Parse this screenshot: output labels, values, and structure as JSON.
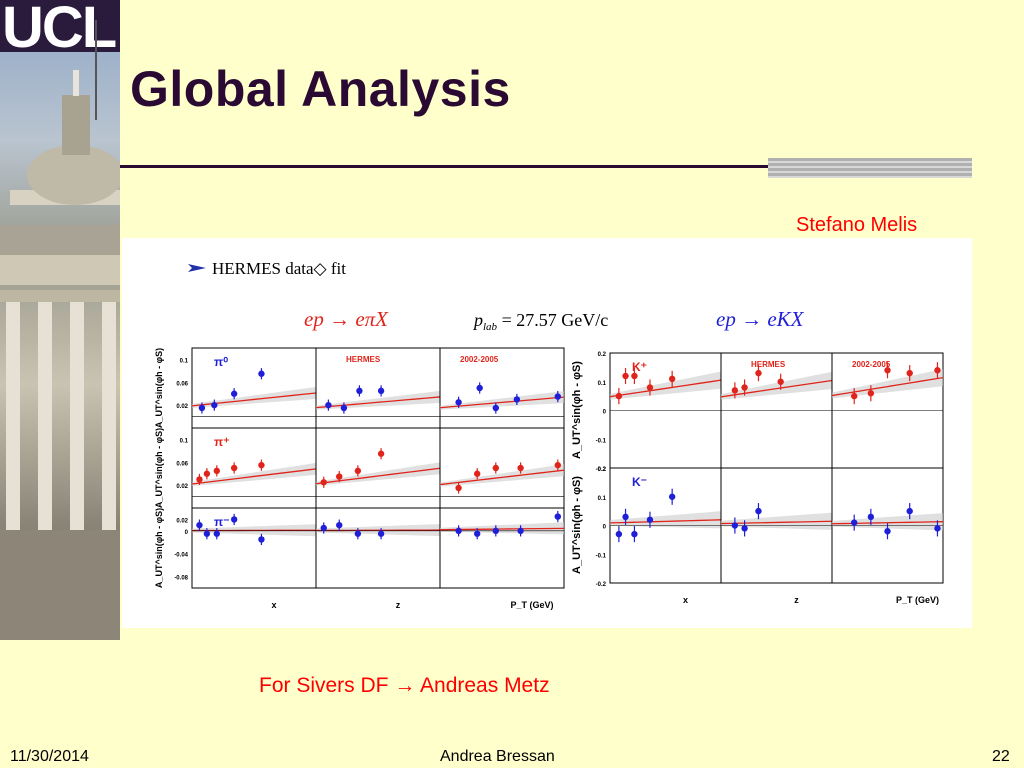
{
  "slide": {
    "title": "Global Analysis",
    "author": "Stefano Melis",
    "credit": "For Sivers DF → Andreas Metz",
    "footer": {
      "date": "11/30/2014",
      "presenter": "Andrea Bressan",
      "page": "22"
    }
  },
  "logo": {
    "text": "UCL"
  },
  "figure": {
    "heading": "HERMES data◇ fit",
    "pion_process": "ep → eπX",
    "plab": "p",
    "plab_sub": "lab",
    "plab_value": " = 27.57 GeV/c",
    "kaon_process": "ep → eKX",
    "hermes_label": "HERMES",
    "years_label": "2002-2005",
    "ylabel_pion": "A_UT^sin(φh - φS)",
    "ylabel_kaon": "A_UT^sin(φh - φS)"
  },
  "colors": {
    "title": "#2a0a33",
    "accent": "#ff0000",
    "data_red": "#e0241b",
    "data_blue": "#1f1fd8",
    "fit": "#e0241b",
    "band": "#cccccc"
  },
  "chart_data": [
    {
      "type": "scatter",
      "title": "π⁰",
      "xlabels": [
        "x",
        "z",
        "P_T (GeV)"
      ],
      "ylabel": "A_UT sin(φh - φS)",
      "ylim": [
        -0.02,
        0.12
      ],
      "series": [
        {
          "name": "π⁰",
          "color": "blue",
          "panels": [
            {
              "x": [
                0.04,
                0.09,
                0.17,
                0.28
              ],
              "y": [
                0.015,
                0.02,
                0.04,
                0.075
              ]
            },
            {
              "x": [
                0.28,
                0.38,
                0.48,
                0.62
              ],
              "y": [
                0.02,
                0.015,
                0.045,
                0.045
              ]
            },
            {
              "x": [
                0.15,
                0.32,
                0.45,
                0.62,
                0.95
              ],
              "y": [
                0.025,
                0.05,
                0.015,
                0.03,
                0.035
              ]
            }
          ]
        }
      ]
    },
    {
      "type": "scatter",
      "title": "π⁺",
      "xlabels": [
        "x",
        "z",
        "P_T (GeV)"
      ],
      "ylim": [
        -0.02,
        0.12
      ],
      "series": [
        {
          "name": "π⁺",
          "color": "red",
          "panels": [
            {
              "x": [
                0.03,
                0.06,
                0.1,
                0.17,
                0.28
              ],
              "y": [
                0.03,
                0.04,
                0.045,
                0.05,
                0.055
              ]
            },
            {
              "x": [
                0.25,
                0.35,
                0.47,
                0.62
              ],
              "y": [
                0.025,
                0.035,
                0.045,
                0.075
              ]
            },
            {
              "x": [
                0.15,
                0.3,
                0.45,
                0.65,
                0.95
              ],
              "y": [
                0.015,
                0.04,
                0.05,
                0.05,
                0.055
              ]
            }
          ]
        }
      ]
    },
    {
      "type": "scatter",
      "title": "π⁻",
      "xlabels": [
        "x",
        "z",
        "P_T (GeV)"
      ],
      "ylim": [
        -0.1,
        0.04
      ],
      "series": [
        {
          "name": "π⁻",
          "color": "blue",
          "panels": [
            {
              "x": [
                0.03,
                0.06,
                0.1,
                0.17,
                0.28
              ],
              "y": [
                0.01,
                -0.005,
                -0.005,
                0.02,
                -0.015
              ]
            },
            {
              "x": [
                0.25,
                0.35,
                0.47,
                0.62
              ],
              "y": [
                0.005,
                0.01,
                -0.005,
                -0.005
              ]
            },
            {
              "x": [
                0.15,
                0.3,
                0.45,
                0.65,
                0.95
              ],
              "y": [
                0.0,
                -0.005,
                0.0,
                0.0,
                0.025
              ]
            }
          ]
        }
      ]
    },
    {
      "type": "scatter",
      "title": "K⁺",
      "xlabels": [
        "x",
        "z",
        "P_T (GeV)"
      ],
      "ylabel": "A_UT sin(φh - φS)",
      "ylim": [
        -0.2,
        0.2
      ],
      "series": [
        {
          "name": "K⁺",
          "color": "red",
          "panels": [
            {
              "x": [
                0.04,
                0.07,
                0.11,
                0.18,
                0.28
              ],
              "y": [
                0.05,
                0.12,
                0.12,
                0.08,
                0.11
              ]
            },
            {
              "x": [
                0.3,
                0.37,
                0.47,
                0.63
              ],
              "y": [
                0.07,
                0.08,
                0.13,
                0.1
              ]
            },
            {
              "x": [
                0.2,
                0.35,
                0.5,
                0.7,
                0.95
              ],
              "y": [
                0.05,
                0.06,
                0.14,
                0.13,
                0.14
              ]
            }
          ]
        }
      ]
    },
    {
      "type": "scatter",
      "title": "K⁻",
      "xlabels": [
        "x",
        "z",
        "P_T (GeV)"
      ],
      "ylim": [
        -0.2,
        0.2
      ],
      "series": [
        {
          "name": "K⁻",
          "color": "blue",
          "panels": [
            {
              "x": [
                0.04,
                0.07,
                0.11,
                0.18,
                0.28
              ],
              "y": [
                -0.03,
                0.03,
                -0.03,
                0.02,
                0.1
              ]
            },
            {
              "x": [
                0.3,
                0.37,
                0.47
              ],
              "y": [
                0.0,
                -0.01,
                0.05
              ]
            },
            {
              "x": [
                0.2,
                0.35,
                0.5,
                0.7,
                0.95
              ],
              "y": [
                0.01,
                0.03,
                -0.02,
                0.05,
                -0.01
              ]
            }
          ]
        }
      ]
    }
  ]
}
